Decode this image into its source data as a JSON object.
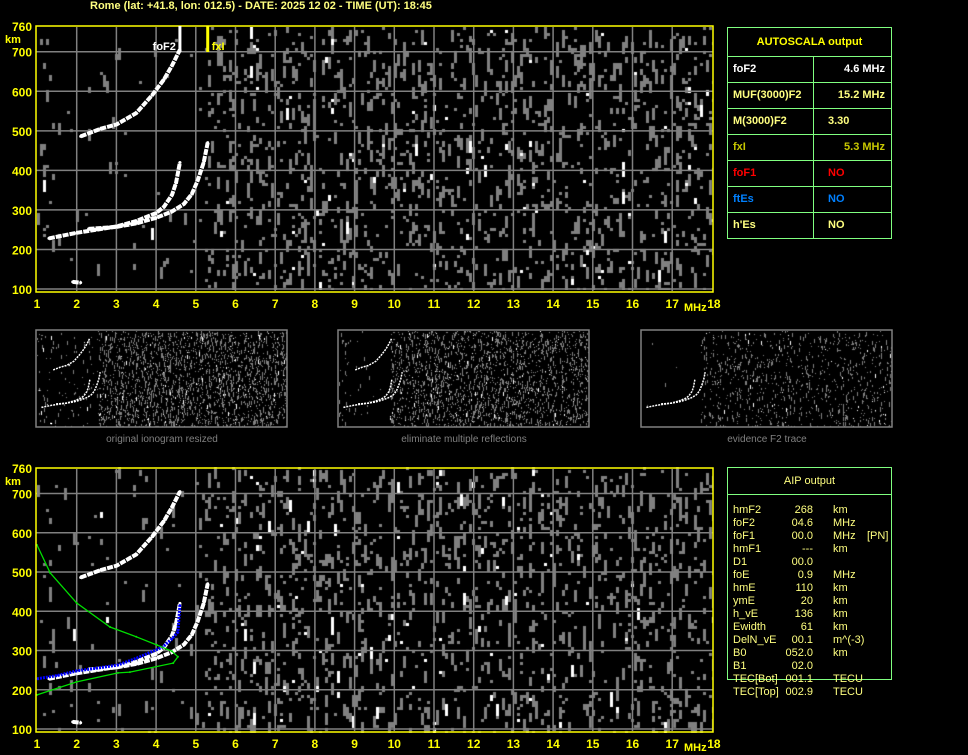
{
  "header": {
    "title": "Rome (lat: +41.8, lon: 012.5) - DATE: 2025 12 02 - TIME (UT): 18:45"
  },
  "colors": {
    "axis": "#ffff00",
    "grid": "#808080",
    "echo": "#ffffff",
    "noise": "#808080",
    "aip_trace": "#0000ff",
    "profile": "#00e000",
    "table_border": "#80ff80",
    "foF1": "#ff0000",
    "ftEs": "#0080ff",
    "fxI": "#c8c800"
  },
  "autoscala": {
    "title": "AUTOSCALA output",
    "rows": [
      {
        "label": "foF2",
        "value": "4.6 MHz",
        "color": "#ffffff"
      },
      {
        "label": "MUF(3000)F2",
        "value": "15.2 MHz",
        "color": "#ffff80"
      },
      {
        "label": "M(3000)F2",
        "value": "3.30",
        "color": "#ffff80"
      },
      {
        "label": "fxI",
        "value": "5.3 MHz",
        "color": "#c8c800"
      },
      {
        "label": "foF1",
        "value": "NO",
        "color": "#ff0000"
      },
      {
        "label": "ftEs",
        "value": "NO",
        "color": "#0080ff"
      },
      {
        "label": "h'Es",
        "value": "NO",
        "color": "#ffff80"
      }
    ]
  },
  "aip": {
    "title": "AIP output",
    "rows": [
      {
        "label": "hmF2",
        "value": "268",
        "unit": "km",
        "extra": ""
      },
      {
        "label": "foF2",
        "value": "04.6",
        "unit": "MHz",
        "extra": ""
      },
      {
        "label": "foF1",
        "value": "00.0",
        "unit": "MHz",
        "extra": "[PN]"
      },
      {
        "label": "hmF1",
        "value": "---",
        "unit": "km",
        "extra": ""
      },
      {
        "label": "D1",
        "value": "00.0",
        "unit": "",
        "extra": ""
      },
      {
        "label": "foE",
        "value": "0.9",
        "unit": "MHz",
        "extra": ""
      },
      {
        "label": "hmE",
        "value": "110",
        "unit": "km",
        "extra": ""
      },
      {
        "label": "ymE",
        "value": "20",
        "unit": "km",
        "extra": ""
      },
      {
        "label": "h_vE",
        "value": "136",
        "unit": "km",
        "extra": ""
      },
      {
        "label": "Ewidth",
        "value": "61",
        "unit": "km",
        "extra": ""
      },
      {
        "label": "DelN_vE",
        "value": "00.1",
        "unit": "m^(-3)",
        "extra": ""
      },
      {
        "label": "B0",
        "value": "052.0",
        "unit": "km",
        "extra": ""
      },
      {
        "label": "B1",
        "value": "02.0",
        "unit": "",
        "extra": ""
      },
      {
        "label": "TEC[Bot]",
        "value": "001.1",
        "unit": "TECU",
        "extra": ""
      },
      {
        "label": "TEC[Top]",
        "value": "002.9",
        "unit": "TECU",
        "extra": ""
      }
    ]
  },
  "thumbnails": [
    {
      "caption": "original ionogram resized"
    },
    {
      "caption": "eliminate multiple reflections"
    },
    {
      "caption": "evidence F2 trace"
    }
  ],
  "chart_data": [
    {
      "type": "scatter",
      "title": "",
      "xlabel": "MHz",
      "ylabel": "km",
      "xlim": [
        1,
        18
      ],
      "ylim": [
        100,
        760
      ],
      "x_ticks": [
        "1",
        "2",
        "3",
        "4",
        "5",
        "6",
        "7",
        "8",
        "9",
        "10",
        "11",
        "12",
        "13",
        "14",
        "15",
        "16",
        "17",
        "18"
      ],
      "y_ticks": [
        "760",
        "700",
        "600",
        "500",
        "400",
        "300",
        "200",
        "100"
      ],
      "grid": true,
      "markers": [
        {
          "label": "foF2",
          "x": 4.6,
          "color": "#ffffff"
        },
        {
          "label": "fxI",
          "x": 5.3,
          "color": "#ffff00"
        }
      ],
      "series": [
        {
          "points": [
            [
              1.3,
              228
            ],
            [
              1.7,
              236
            ],
            [
              2,
              242
            ],
            [
              2.5,
              250
            ],
            [
              3,
              258
            ],
            [
              3.5,
              272
            ],
            [
              4,
              292
            ],
            [
              4.2,
              308
            ],
            [
              4.4,
              338
            ],
            [
              4.5,
              368
            ],
            [
              4.6,
              420
            ]
          ]
        },
        {
          "points": [
            [
              2.3,
              252
            ],
            [
              3,
              257
            ],
            [
              3.5,
              266
            ],
            [
              4,
              280
            ],
            [
              4.4,
              296
            ],
            [
              4.7,
              315
            ],
            [
              4.9,
              340
            ],
            [
              5.05,
              375
            ],
            [
              5.2,
              420
            ],
            [
              5.3,
              470
            ]
          ]
        },
        {
          "points": [
            [
              2.1,
              486
            ],
            [
              2.6,
              505
            ],
            [
              3,
              516
            ],
            [
              3.5,
              545
            ],
            [
              3.9,
              590
            ],
            [
              4.2,
              630
            ],
            [
              4.4,
              665
            ],
            [
              4.6,
              705
            ]
          ]
        },
        {
          "points": [
            [
              1.9,
              118
            ],
            [
              2.1,
              116
            ]
          ]
        }
      ]
    },
    {
      "type": "scatter",
      "title": "",
      "xlabel": "MHz",
      "ylabel": "km",
      "xlim": [
        1,
        18
      ],
      "ylim": [
        100,
        760
      ],
      "x_ticks": [
        "1",
        "2",
        "3",
        "4",
        "5",
        "6",
        "7",
        "8",
        "9",
        "10",
        "11",
        "12",
        "13",
        "14",
        "15",
        "16",
        "17",
        "18"
      ],
      "y_ticks": [
        "760",
        "700",
        "600",
        "500",
        "400",
        "300",
        "200",
        "100"
      ],
      "grid": true,
      "series": [
        {
          "points": [
            [
              1.3,
              228
            ],
            [
              1.7,
              236
            ],
            [
              2,
              242
            ],
            [
              2.5,
              250
            ],
            [
              3,
              258
            ],
            [
              3.5,
              272
            ],
            [
              4,
              292
            ],
            [
              4.2,
              308
            ],
            [
              4.4,
              338
            ],
            [
              4.5,
              368
            ],
            [
              4.6,
              420
            ]
          ]
        },
        {
          "points": [
            [
              2.3,
              252
            ],
            [
              3,
              257
            ],
            [
              3.5,
              266
            ],
            [
              4,
              280
            ],
            [
              4.4,
              296
            ],
            [
              4.7,
              315
            ],
            [
              4.9,
              340
            ],
            [
              5.05,
              375
            ],
            [
              5.2,
              420
            ],
            [
              5.3,
              470
            ]
          ]
        },
        {
          "points": [
            [
              2.1,
              486
            ],
            [
              2.6,
              505
            ],
            [
              3,
              516
            ],
            [
              3.5,
              545
            ],
            [
              3.9,
              590
            ],
            [
              4.2,
              630
            ],
            [
              4.4,
              665
            ],
            [
              4.6,
              705
            ]
          ]
        },
        {
          "points": [
            [
              1.9,
              118
            ],
            [
              2.1,
              116
            ]
          ]
        },
        {
          "points": [
            [
              1.0,
              228
            ],
            [
              1.5,
              236
            ],
            [
              2,
              248
            ],
            [
              2.5,
              255
            ],
            [
              3.04,
              263
            ],
            [
              3.52,
              281
            ],
            [
              4.17,
              309
            ],
            [
              4.4,
              330
            ],
            [
              4.55,
              347
            ],
            [
              4.6,
              416
            ]
          ],
          "color": "#0000ff"
        },
        {
          "points": [
            [
              1.0,
              569
            ],
            [
              1.33,
              498
            ],
            [
              2,
              421
            ],
            [
              2.84,
              360
            ],
            [
              3.5,
              335
            ],
            [
              4.02,
              314
            ],
            [
              4.4,
              298
            ],
            [
              4.55,
              284
            ],
            [
              4.43,
              268
            ],
            [
              3.34,
              245
            ],
            [
              3.04,
              243
            ],
            [
              2,
              220
            ],
            [
              1.0,
              187
            ]
          ],
          "color": "#00e000"
        }
      ]
    }
  ]
}
